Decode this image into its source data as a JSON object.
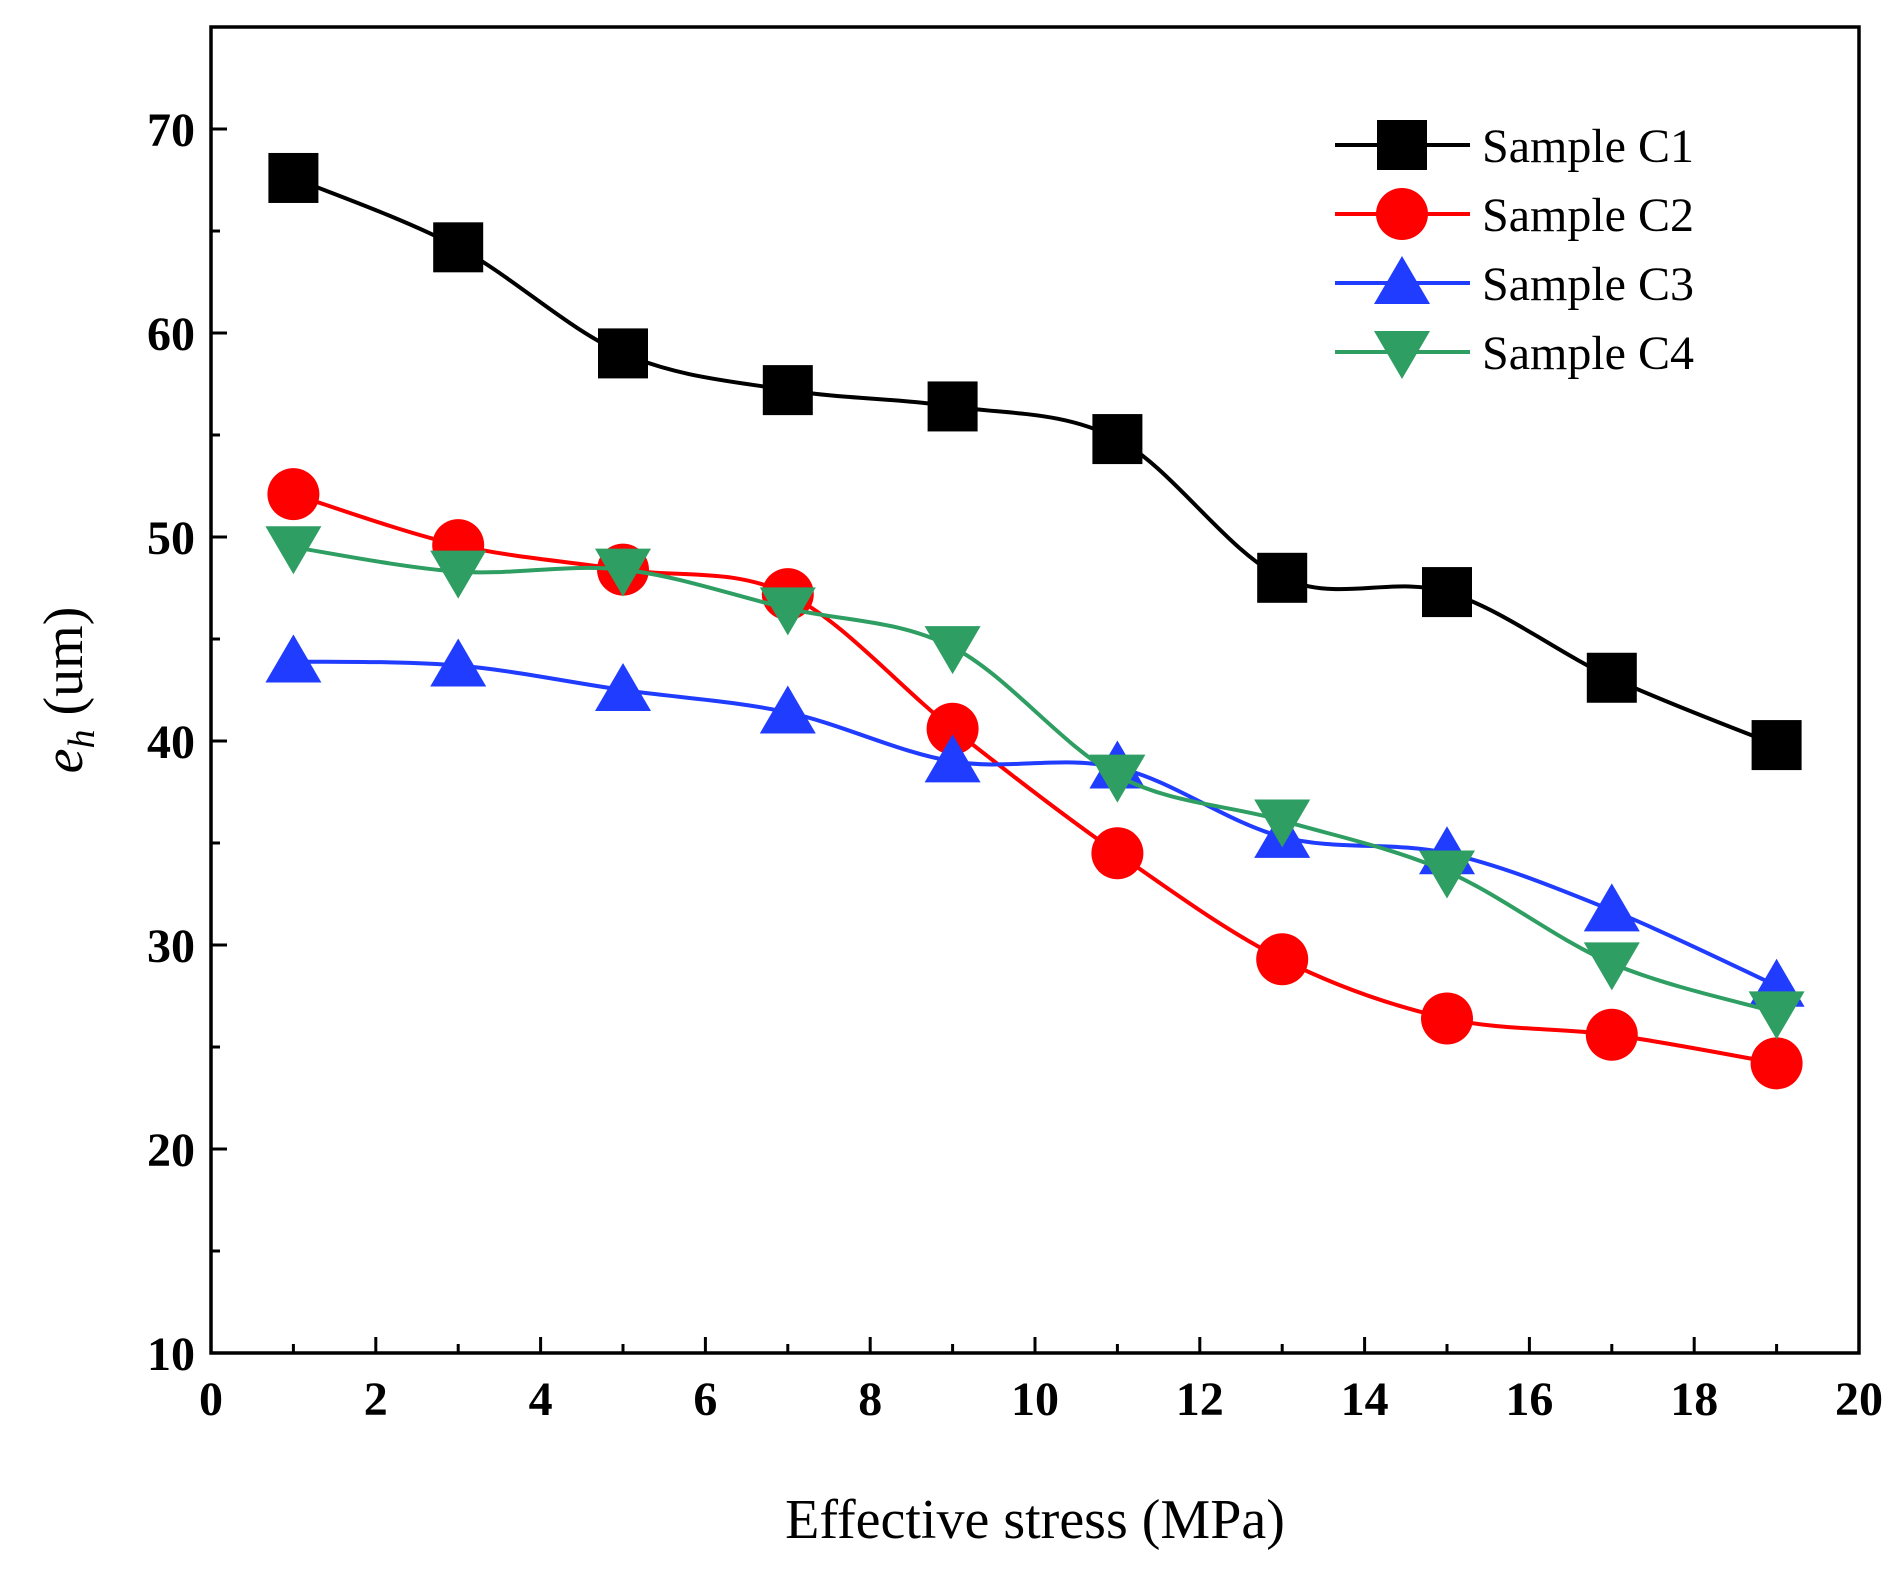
{
  "chart_data": {
    "type": "line",
    "title": "",
    "xlabel": "Effective stress (MPa)",
    "ylabel": {
      "base": "e",
      "sub": "h",
      "unit": " (um)"
    },
    "xlim": [
      0,
      20
    ],
    "ylim": [
      10,
      75
    ],
    "xticks": [
      0,
      2,
      4,
      6,
      8,
      10,
      12,
      14,
      16,
      18,
      20
    ],
    "yticks": [
      10,
      20,
      30,
      40,
      50,
      60,
      70
    ],
    "legend_position": "top-right",
    "x": [
      1,
      3,
      5,
      7,
      9,
      11,
      13,
      15,
      17,
      19
    ],
    "series": [
      {
        "name": "Sample C1",
        "color": "#000000",
        "marker": "square",
        "values": [
          67.6,
          64.2,
          59.0,
          57.2,
          56.4,
          54.8,
          48.0,
          47.3,
          43.1,
          39.8
        ]
      },
      {
        "name": "Sample C2",
        "color": "#ff0000",
        "marker": "circle",
        "values": [
          52.1,
          49.6,
          48.4,
          47.2,
          40.6,
          34.5,
          29.3,
          26.4,
          25.6,
          24.2
        ]
      },
      {
        "name": "Sample C3",
        "color": "#1f3cff",
        "marker": "triangle-up",
        "values": [
          43.9,
          43.7,
          42.5,
          41.4,
          39.0,
          38.7,
          35.3,
          34.5,
          31.7,
          28.0
        ]
      },
      {
        "name": "Sample C4",
        "color": "#2e9e63",
        "marker": "triangle-down",
        "values": [
          49.5,
          48.3,
          48.4,
          46.5,
          44.6,
          38.3,
          36.1,
          33.6,
          29.1,
          26.7
        ]
      }
    ]
  }
}
